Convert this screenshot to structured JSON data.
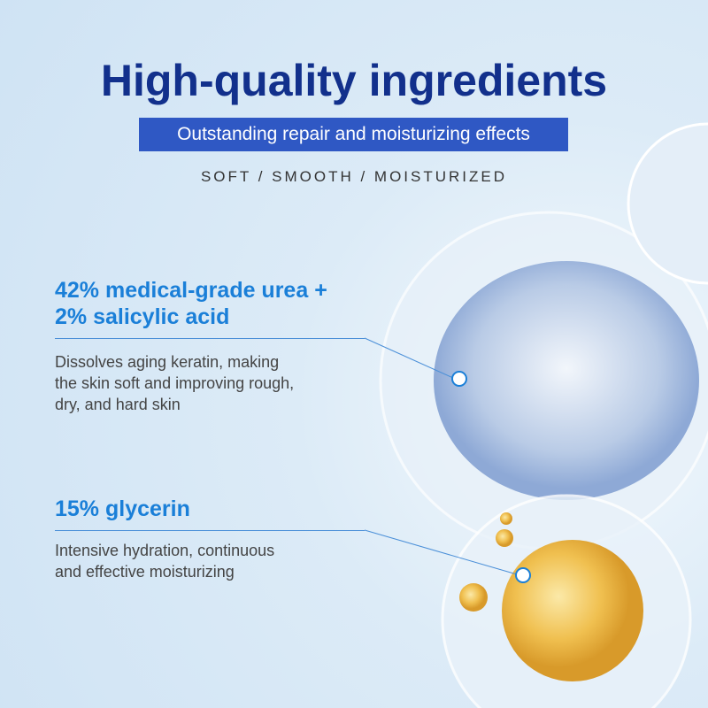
{
  "header": {
    "title": "High-quality ingredients",
    "subtitle": "Outstanding repair and moisturizing effects",
    "tagline": "SOFT / SMOOTH / MOISTURIZED"
  },
  "ingredients": [
    {
      "heading_line1": "42% medical-grade urea +",
      "heading_line2": "2% salicylic acid",
      "description_line1": "Dissolves aging keratin, making",
      "description_line2": "the skin soft and improving rough,",
      "description_line3": "dry, and hard skin"
    },
    {
      "heading_line1": "15% glycerin",
      "description_line1": "Intensive hydration, continuous",
      "description_line2": "and effective moisturizing"
    }
  ]
}
